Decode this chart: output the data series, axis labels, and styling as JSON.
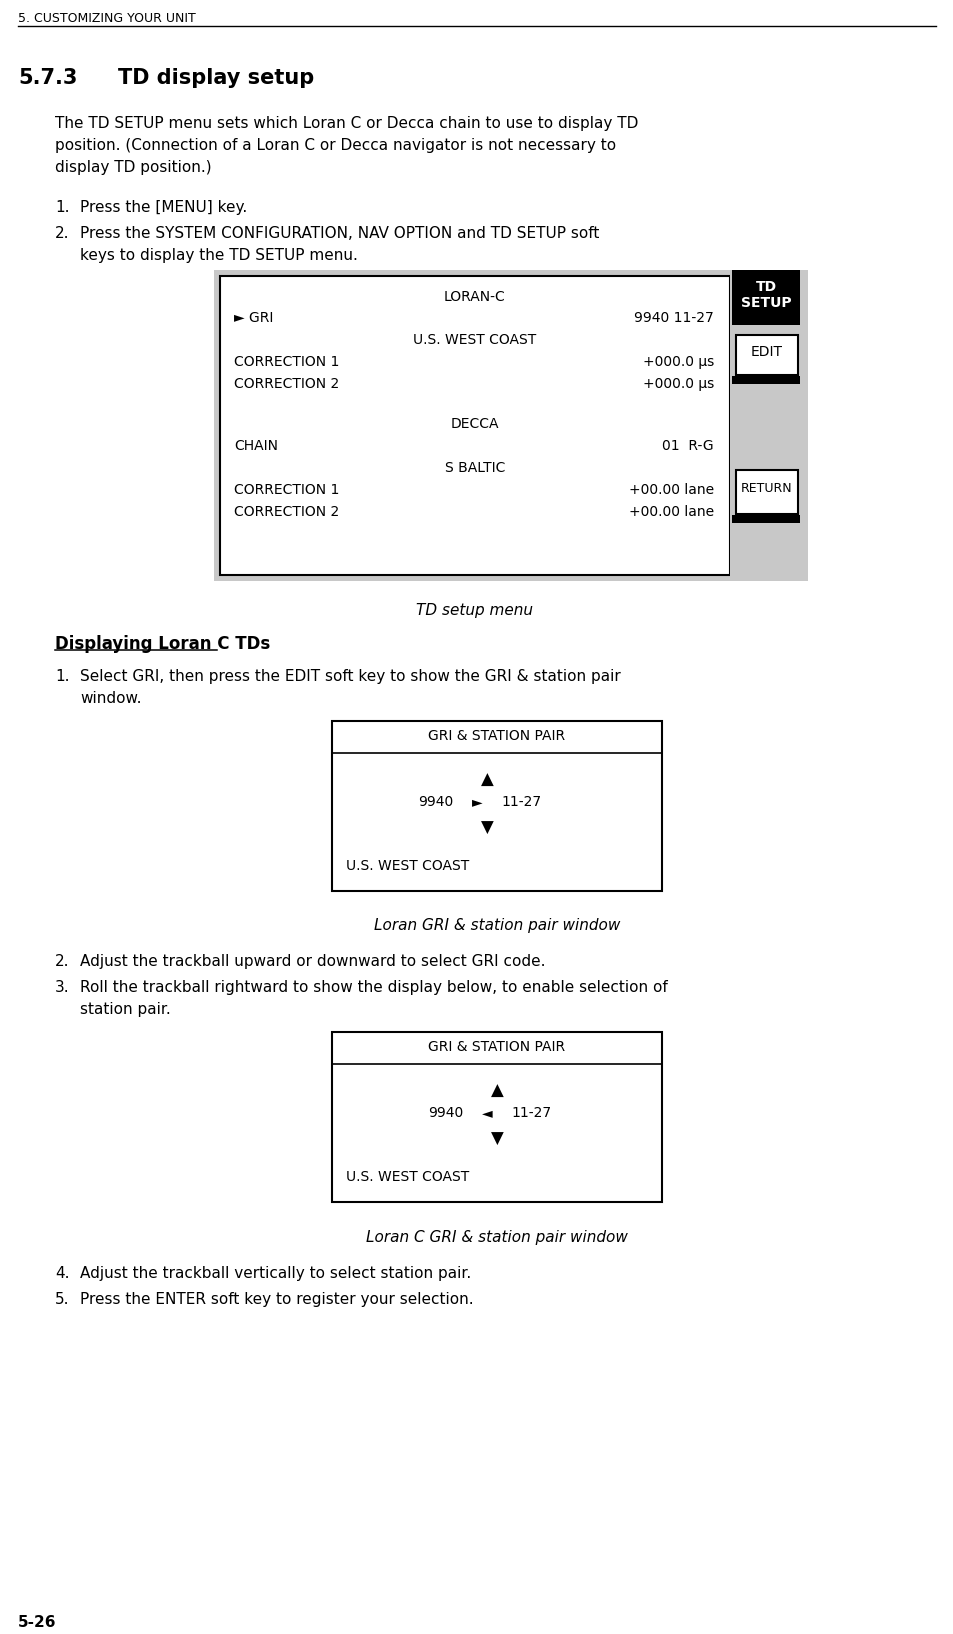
{
  "page_header": "5. CUSTOMIZING YOUR UNIT",
  "section_number": "5.7.3",
  "section_title": "TD display setup",
  "body_lines": [
    "The TD SETUP menu sets which Loran C or Decca chain to use to display TD",
    "position. (Connection of a Loran C or Decca navigator is not necessary to",
    "display TD position.)"
  ],
  "step1_text": "Press the [MENU] key.",
  "step2_line1": "Press the SYSTEM CONFIGURATION, NAV OPTION and TD SETUP soft",
  "step2_line2": "keys to display the TD SETUP menu.",
  "menu_loran_header": "LORAN-C",
  "menu_gri_label": "► GRI",
  "menu_gri_value": "9940 11-27",
  "menu_gri_sub": "U.S. WEST COAST",
  "menu_corr1_label": "CORRECTION 1",
  "menu_corr1_value": "+000.0 μs",
  "menu_corr2_label": "CORRECTION 2",
  "menu_corr2_value": "+000.0 μs",
  "menu_decca_header": "DECCA",
  "menu_chain_label": "CHAIN",
  "menu_chain_value": "01  R-G",
  "menu_chain_sub": "S BALTIC",
  "menu_dcorr1_label": "CORRECTION 1",
  "menu_dcorr1_value": "+00.00 lane",
  "menu_dcorr2_label": "CORRECTION 2",
  "menu_dcorr2_value": "+00.00 lane",
  "btn_td": "TD",
  "btn_setup": "SETUP",
  "btn_edit": "EDIT",
  "btn_return": "RETURN",
  "menu_caption": "TD setup menu",
  "displaying_title": "Displaying Loran C TDs",
  "disp_step1_line1": "Select GRI, then press the EDIT soft key to show the GRI & station pair",
  "disp_step1_line2": "window.",
  "gri1_title": "GRI & STATION PAIR",
  "gri1_arrow_up": "▲",
  "gri1_9940": "9940",
  "gri1_arrow_right": "►",
  "gri1_1127": "11-27",
  "gri1_arrow_down": "▼",
  "gri1_coast": "U.S. WEST COAST",
  "gri1_caption": "Loran GRI & station pair window",
  "disp_step2": "Adjust the trackball upward or downward to select GRI code.",
  "disp_step3_line1": "Roll the trackball rightward to show the display below, to enable selection of",
  "disp_step3_line2": "station pair.",
  "gri2_title": "GRI & STATION PAIR",
  "gri2_arrow_up": "▲",
  "gri2_9940": "9940",
  "gri2_arrow_left": "◄",
  "gri2_1127": "11-27",
  "gri2_arrow_down": "▼",
  "gri2_coast": "U.S. WEST COAST",
  "gri2_caption": "Loran C GRI & station pair window",
  "disp_step4": "Adjust the trackball vertically to select station pair.",
  "disp_step5": "Press the ENTER soft key to register your selection.",
  "page_number": "5-26",
  "bg_color": "#ffffff",
  "gray_bg": "#c8c8c8",
  "black": "#000000",
  "white": "#ffffff"
}
